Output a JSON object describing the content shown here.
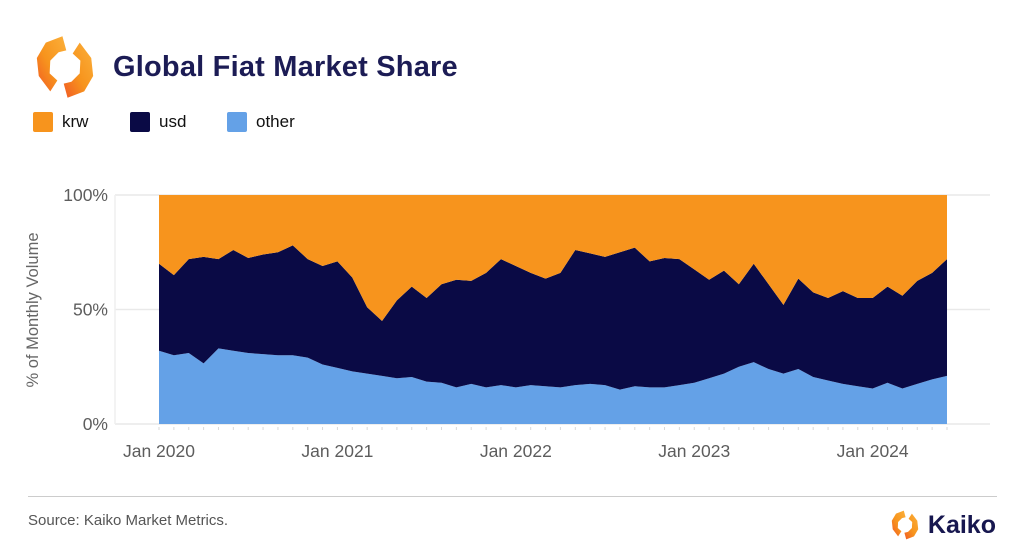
{
  "header": {
    "title": "Global Fiat Market Share"
  },
  "legend": [
    {
      "label": "krw",
      "color": "#F7941D"
    },
    {
      "label": "usd",
      "color": "#0A0A45"
    },
    {
      "label": "other",
      "color": "#64A1E7"
    }
  ],
  "chart_data": {
    "type": "area",
    "stacked": true,
    "normalized_percent": true,
    "title": "Global Fiat Market Share",
    "ylabel": "% of Monthly Volume",
    "ylim": [
      0,
      100
    ],
    "grid": true,
    "legend_position": "top-left",
    "x": [
      "2020-01",
      "2020-02",
      "2020-03",
      "2020-04",
      "2020-05",
      "2020-06",
      "2020-07",
      "2020-08",
      "2020-09",
      "2020-10",
      "2020-11",
      "2020-12",
      "2021-01",
      "2021-02",
      "2021-03",
      "2021-04",
      "2021-05",
      "2021-06",
      "2021-07",
      "2021-08",
      "2021-09",
      "2021-10",
      "2021-11",
      "2021-12",
      "2022-01",
      "2022-02",
      "2022-03",
      "2022-04",
      "2022-05",
      "2022-06",
      "2022-07",
      "2022-08",
      "2022-09",
      "2022-10",
      "2022-11",
      "2022-12",
      "2023-01",
      "2023-02",
      "2023-03",
      "2023-04",
      "2023-05",
      "2023-06",
      "2023-07",
      "2023-08",
      "2023-09",
      "2023-10",
      "2023-11",
      "2023-12",
      "2024-01",
      "2024-02",
      "2024-03",
      "2024-04",
      "2024-05",
      "2024-06"
    ],
    "series": [
      {
        "name": "other",
        "color": "#64A1E7",
        "values": [
          32,
          30,
          31,
          26.5,
          33,
          32,
          31,
          30.5,
          30,
          30,
          29,
          26,
          24.5,
          23,
          22,
          21,
          20,
          20.5,
          18.5,
          18,
          16,
          17.5,
          16,
          17,
          16,
          17,
          16.5,
          16,
          17,
          17.5,
          17,
          15,
          16.5,
          16,
          16,
          17,
          18,
          20,
          22,
          25,
          27,
          24,
          22,
          24,
          20.5,
          19,
          17.5,
          16.5,
          15.5,
          18,
          15.5,
          17.5,
          19.5,
          21
        ]
      },
      {
        "name": "usd",
        "color": "#0A0A45",
        "values": [
          38,
          35,
          41,
          46.5,
          39,
          44,
          41.5,
          43.5,
          45,
          48,
          43,
          43,
          46.5,
          41,
          29,
          24,
          34,
          39.5,
          36.5,
          43,
          47,
          45,
          50,
          55,
          53,
          49,
          47,
          50,
          59,
          57,
          56,
          60,
          60.5,
          55,
          56.5,
          55,
          49.5,
          43,
          45,
          36,
          43,
          37,
          30,
          39.5,
          37,
          36,
          40.5,
          38.5,
          39.5,
          42,
          40.5,
          45,
          46.5,
          51
        ]
      },
      {
        "name": "krw",
        "color": "#F7941D",
        "values": [
          30,
          35,
          28,
          27,
          28,
          24,
          27.5,
          26,
          25,
          22,
          28,
          31,
          29,
          36,
          49,
          55,
          46,
          40,
          45,
          39,
          37,
          37.5,
          34,
          28,
          31,
          34,
          36.5,
          34,
          24,
          25.5,
          27,
          25,
          23,
          29,
          27.5,
          28,
          32.5,
          37,
          33,
          39,
          30,
          39,
          48,
          36.5,
          42.5,
          45,
          42,
          45,
          45,
          40,
          44,
          37.5,
          34,
          28
        ]
      }
    ],
    "yticks": [
      {
        "label": "0%",
        "value": 0
      },
      {
        "label": "50%",
        "value": 50
      },
      {
        "label": "100%",
        "value": 100
      }
    ],
    "xticks": [
      {
        "label": "Jan 2020",
        "index": 0
      },
      {
        "label": "Jan 2021",
        "index": 12
      },
      {
        "label": "Jan 2022",
        "index": 24
      },
      {
        "label": "Jan 2023",
        "index": 36
      },
      {
        "label": "Jan 2024",
        "index": 48
      }
    ]
  },
  "footer": {
    "source": "Source: Kaiko Market Metrics.",
    "brand": "Kaiko"
  }
}
